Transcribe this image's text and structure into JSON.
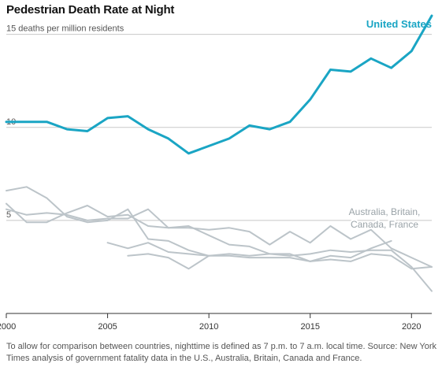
{
  "chart_data": {
    "type": "line",
    "title": "Pedestrian Death Rate at Night",
    "xlabel": "",
    "ylabel": "",
    "xlim": [
      2000,
      2021
    ],
    "ylim": [
      0,
      16
    ],
    "x_ticks": [
      "2000",
      "2005",
      "2010",
      "2015",
      "2020"
    ],
    "y_ticks": [
      {
        "value": 15,
        "label": "15 deaths per million residents"
      },
      {
        "value": 10,
        "label": "10"
      },
      {
        "value": 5,
        "label": "5"
      }
    ],
    "highlight_label": "United States",
    "others_label": [
      "Australia, Britain,",
      "Canada, France"
    ],
    "colors": {
      "highlight": "#1aa5c4",
      "others": "#bcc4c9",
      "grid": "#c8c8c8",
      "axis": "#333333"
    },
    "grid": true,
    "series": [
      {
        "name": "United States",
        "highlight": true,
        "x": [
          2000,
          2001,
          2002,
          2003,
          2004,
          2005,
          2006,
          2007,
          2008,
          2009,
          2010,
          2011,
          2012,
          2013,
          2014,
          2015,
          2016,
          2017,
          2018,
          2019,
          2020,
          2021
        ],
        "values": [
          10.3,
          10.3,
          10.3,
          9.9,
          9.8,
          10.5,
          10.6,
          9.9,
          9.4,
          8.6,
          9.0,
          9.4,
          10.1,
          9.9,
          10.3,
          11.5,
          13.1,
          13.0,
          13.7,
          13.2,
          14.1,
          16.0
        ]
      },
      {
        "x": [
          2000,
          2001,
          2002,
          2003,
          2004,
          2005,
          2006,
          2007,
          2008,
          2009,
          2010,
          2011,
          2012,
          2013,
          2014,
          2015,
          2016,
          2017,
          2018,
          2019,
          2020,
          2021
        ],
        "values": [
          5.9,
          4.9,
          4.9,
          5.4,
          5.8,
          5.2,
          5.3,
          4.7,
          4.6,
          4.7,
          4.2,
          3.7,
          3.6,
          3.2,
          3.1,
          3.2,
          3.4,
          3.3,
          3.4,
          3.4,
          2.5,
          1.2
        ]
      },
      {
        "x": [
          2000,
          2001,
          2002,
          2003,
          2004,
          2005,
          2006,
          2007,
          2008,
          2009,
          2010,
          2011,
          2012,
          2013,
          2014,
          2015,
          2016,
          2017,
          2018,
          2019,
          2020,
          2021
        ],
        "values": [
          5.6,
          5.3,
          5.4,
          5.3,
          5.0,
          5.1,
          5.1,
          5.6,
          4.6,
          4.6,
          4.5,
          4.6,
          4.4,
          3.7,
          4.4,
          3.8,
          4.7,
          4.0,
          4.5,
          3.5,
          3.0,
          2.5
        ]
      },
      {
        "x": [
          2000,
          2001,
          2002,
          2003,
          2004,
          2005,
          2006,
          2007,
          2008,
          2009,
          2010,
          2011,
          2012,
          2013,
          2014,
          2015,
          2016,
          2017,
          2018,
          2019,
          2020,
          2021
        ],
        "values": [
          6.6,
          6.8,
          6.2,
          5.2,
          4.9,
          5.0,
          5.6,
          4.0,
          3.9,
          3.4,
          3.1,
          3.1,
          3.0,
          3.0,
          3.0,
          2.8,
          2.9,
          2.8,
          3.2,
          3.1,
          2.4,
          2.5
        ]
      },
      {
        "x": [
          2005,
          2006,
          2007,
          2008,
          2009,
          2010,
          2011,
          2012,
          2013,
          2014,
          2015,
          2016,
          2017,
          2018,
          2019
        ],
        "values": [
          3.8,
          3.5,
          3.8,
          3.3,
          3.2,
          3.1,
          3.2,
          3.1,
          3.2,
          3.2,
          2.8,
          3.1,
          3.0,
          3.5,
          3.9
        ]
      },
      {
        "x": [
          2006,
          2007,
          2008,
          2009,
          2010
        ],
        "values": [
          3.1,
          3.2,
          3.0,
          2.4,
          3.1
        ]
      }
    ]
  },
  "footnote": "To allow for comparison between countries, nighttime is defined as 7 p.m. to 7 a.m. local time. Source: New York Times analysis of government fatality data in the U.S., Australia, Britain, Canada and France."
}
